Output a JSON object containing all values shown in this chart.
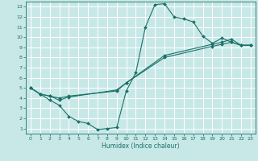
{
  "xlabel": "Humidex (Indice chaleur)",
  "bg_color": "#c8e8e8",
  "grid_color": "#ffffff",
  "line_color": "#1a7068",
  "xlim": [
    -0.5,
    23.5
  ],
  "ylim": [
    0.5,
    13.5
  ],
  "xticks": [
    0,
    1,
    2,
    3,
    4,
    5,
    6,
    7,
    8,
    9,
    10,
    11,
    12,
    13,
    14,
    15,
    16,
    17,
    18,
    19,
    20,
    21,
    22,
    23
  ],
  "yticks": [
    1,
    2,
    3,
    4,
    5,
    6,
    7,
    8,
    9,
    10,
    11,
    12,
    13
  ],
  "line1_x": [
    0,
    1,
    2,
    3,
    4,
    5,
    6,
    7,
    8,
    9,
    10,
    11,
    12,
    13,
    14,
    15,
    16,
    17,
    18,
    19,
    20,
    21,
    22,
    23
  ],
  "line1_y": [
    5.0,
    4.4,
    3.8,
    3.3,
    2.2,
    1.7,
    1.5,
    0.9,
    1.0,
    1.1,
    4.7,
    6.5,
    11.0,
    13.2,
    13.3,
    12.0,
    11.8,
    11.5,
    10.1,
    9.4,
    9.9,
    9.5,
    9.2,
    9.2
  ],
  "line2_x": [
    0,
    1,
    2,
    3,
    4,
    9,
    10,
    14,
    19,
    20,
    21,
    22,
    23
  ],
  "line2_y": [
    5.0,
    4.4,
    4.2,
    4.0,
    4.2,
    4.7,
    5.5,
    8.2,
    9.3,
    9.5,
    9.8,
    9.2,
    9.2
  ],
  "line3_x": [
    0,
    1,
    2,
    3,
    4,
    9,
    10,
    14,
    19,
    20,
    21,
    22,
    23
  ],
  "line3_y": [
    5.0,
    4.4,
    4.2,
    3.8,
    4.1,
    4.8,
    5.5,
    8.0,
    9.1,
    9.3,
    9.5,
    9.2,
    9.2
  ]
}
